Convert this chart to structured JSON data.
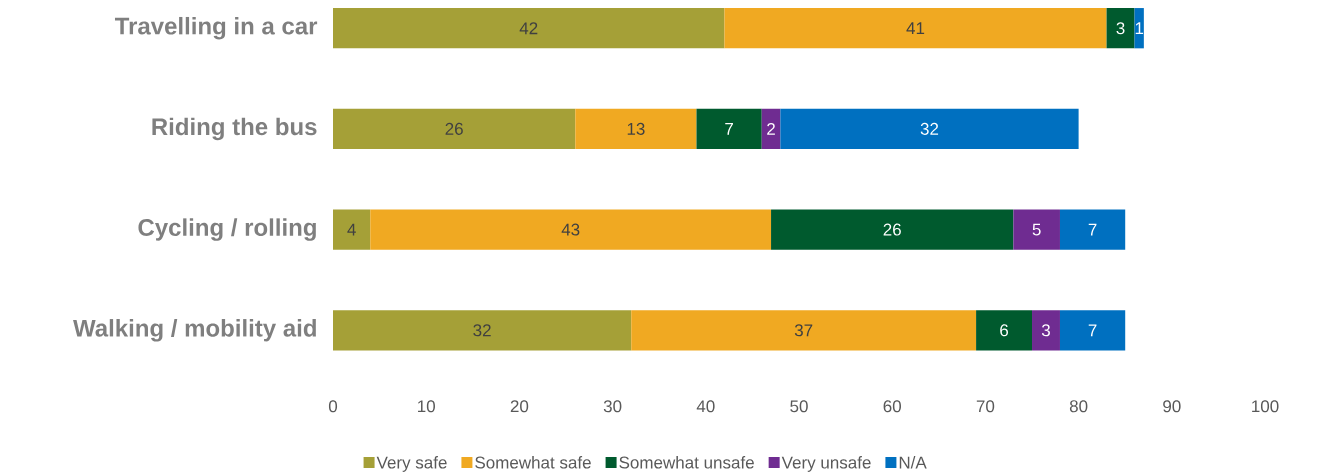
{
  "chart_data": {
    "type": "bar",
    "orientation": "horizontal",
    "stacked": true,
    "data_labels": true,
    "legend": "bottom",
    "grid": false,
    "categories": [
      "Travelling in a car",
      "Riding the bus",
      "Cycling / rolling",
      "Walking / mobility aid"
    ],
    "series": [
      {
        "name": "Very safe",
        "color": "#a5a037",
        "values": [
          42,
          26,
          4,
          32
        ]
      },
      {
        "name": "Somewhat safe",
        "color": "#f0a922",
        "values": [
          41,
          13,
          43,
          37
        ]
      },
      {
        "name": "Somewhat unsafe",
        "color": "#005a2e",
        "values": [
          3,
          7,
          26,
          6
        ]
      },
      {
        "name": "Very unsafe",
        "color": "#6f2c91",
        "values": [
          null,
          2,
          5,
          3
        ]
      },
      {
        "name": "N/A",
        "color": "#0070c0",
        "values": [
          1,
          32,
          7,
          7
        ]
      }
    ],
    "xlim": [
      0,
      100
    ],
    "xticks": [
      0,
      10,
      20,
      30,
      40,
      50,
      60,
      70,
      80,
      90,
      100
    ]
  }
}
